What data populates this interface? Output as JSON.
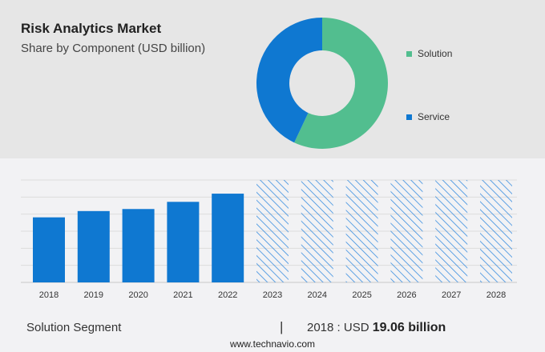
{
  "header": {
    "title": "Risk Analytics Market",
    "subtitle": "Share by Component (USD billion)"
  },
  "chart_data": [
    {
      "type": "pie",
      "donut": true,
      "categories": [
        "Solution",
        "Service"
      ],
      "values": [
        57,
        43
      ],
      "colors": [
        "#52be8f",
        "#0f78d1"
      ],
      "legend_placement": "right"
    },
    {
      "type": "bar",
      "categories": [
        "2018",
        "2019",
        "2020",
        "2021",
        "2022",
        "2023",
        "2024",
        "2025",
        "2026",
        "2027",
        "2028"
      ],
      "values": [
        19.06,
        20.9,
        21.5,
        23.6,
        26.0,
        null,
        null,
        null,
        null,
        null,
        null
      ],
      "forecast": [
        "2023",
        "2024",
        "2025",
        "2026",
        "2027",
        "2028"
      ],
      "ylim": [
        0,
        30
      ],
      "grid": true,
      "color": "#0f78d1"
    }
  ],
  "footer": {
    "segment": "Solution Segment",
    "separator": "|",
    "year_label": "2018 : USD ",
    "value": "19.06 billion",
    "source": "www.technavio.com"
  }
}
